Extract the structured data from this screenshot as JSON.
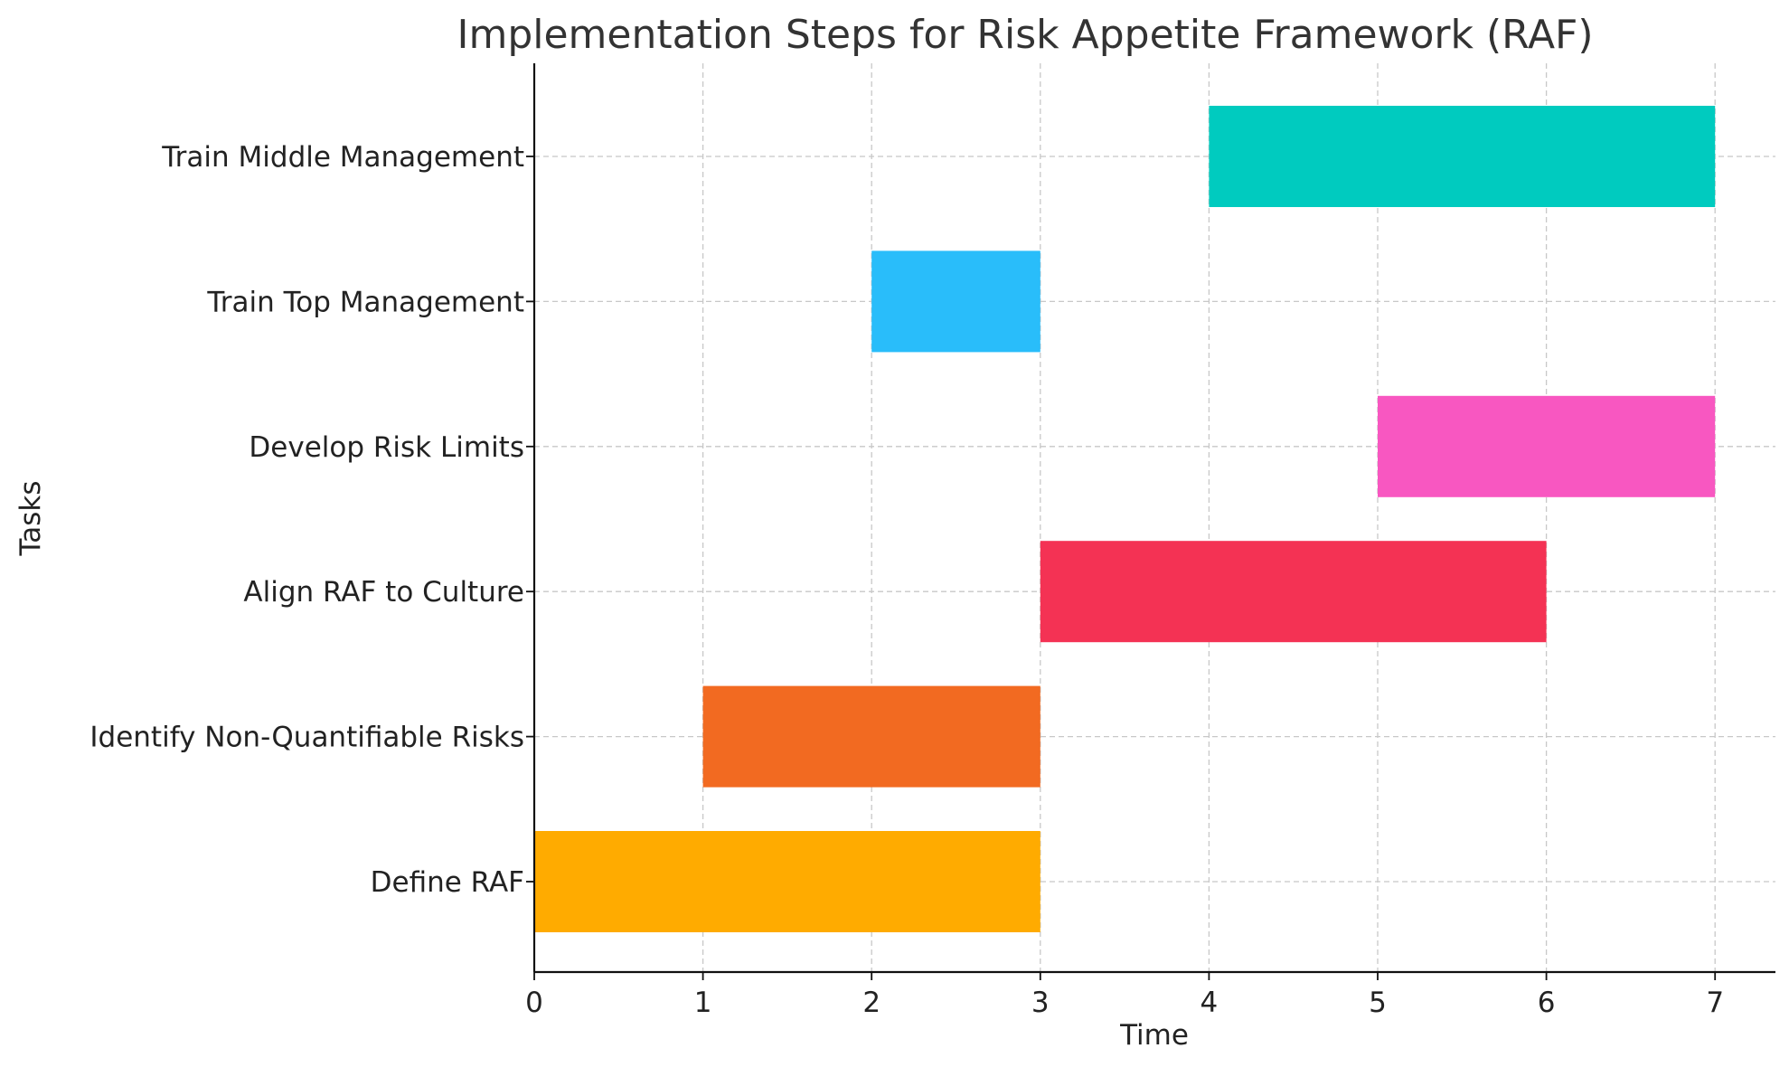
{
  "chart_data": {
    "type": "gantt",
    "title": "Implementation Steps for Risk Appetite Framework (RAF)",
    "xlabel": "Time",
    "ylabel": "Tasks",
    "xlim": [
      0,
      7.35
    ],
    "x_ticks": [
      "0",
      "1",
      "2",
      "3",
      "4",
      "5",
      "6",
      "7"
    ],
    "grid": true,
    "tasks": [
      {
        "name": "Define RAF",
        "start": 0,
        "end": 3,
        "color": "#FFAB00"
      },
      {
        "name": "Identify Non-Quantifiable Risks",
        "start": 1,
        "end": 3,
        "color": "#F26A21"
      },
      {
        "name": "Align RAF to Culture",
        "start": 3,
        "end": 6,
        "color": "#F43254"
      },
      {
        "name": "Develop Risk Limits",
        "start": 5,
        "end": 7,
        "color": "#F857C1"
      },
      {
        "name": "Train Top Management",
        "start": 2,
        "end": 3,
        "color": "#29BDFA"
      },
      {
        "name": "Train Middle Management",
        "start": 4,
        "end": 7,
        "color": "#00CBBF"
      }
    ]
  }
}
